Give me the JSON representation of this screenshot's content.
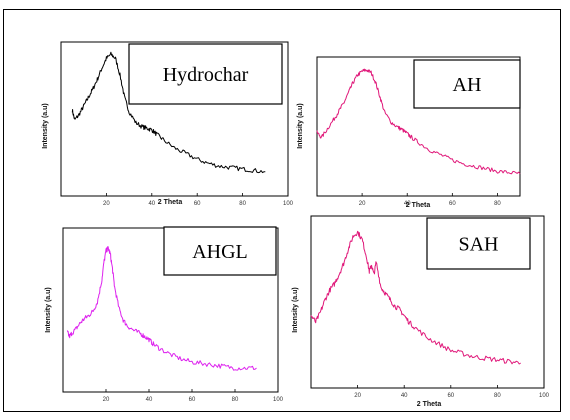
{
  "chart_data": [
    {
      "type": "line",
      "label": "Hydrochar",
      "color": "#000000",
      "xlabel": "2 Theta",
      "ylabel": "Intensity (a.u)",
      "xlim": [
        0,
        100
      ],
      "ylim": [
        0,
        100
      ],
      "xticks": [
        "20",
        "40",
        "60",
        "80",
        "100"
      ],
      "x": [
        5,
        6,
        8,
        10,
        12,
        14,
        16,
        18,
        20,
        22,
        24,
        26,
        28,
        30,
        33,
        36,
        38,
        40,
        42,
        45,
        50,
        55,
        60,
        65,
        70,
        75,
        80,
        85,
        90
      ],
      "y": [
        57,
        50,
        54,
        60,
        66,
        72,
        79,
        87,
        94,
        97,
        94,
        82,
        66,
        56,
        48,
        45,
        44,
        43,
        40,
        36,
        30,
        26,
        22,
        19,
        17,
        16,
        15,
        14,
        13
      ]
    },
    {
      "type": "line",
      "label": "AH",
      "color": "#e0197a",
      "xlabel": "2 Theta",
      "ylabel": "Intensity (a.u)",
      "xlim": [
        0,
        90
      ],
      "ylim": [
        0,
        100
      ],
      "xticks": [
        "20",
        "40",
        "60",
        "80"
      ],
      "x": [
        0,
        2,
        5,
        8,
        10,
        12,
        14,
        16,
        18,
        20,
        22,
        24,
        26,
        28,
        30,
        33,
        36,
        38,
        40,
        42,
        45,
        50,
        55,
        60,
        65,
        70,
        75,
        80,
        85,
        90
      ],
      "y": [
        46,
        42,
        50,
        58,
        64,
        70,
        78,
        86,
        92,
        95,
        96,
        94,
        86,
        74,
        62,
        54,
        50,
        48,
        45,
        42,
        38,
        32,
        28,
        24,
        21,
        19,
        17,
        15,
        14,
        13
      ]
    },
    {
      "type": "line",
      "label": "AHGL",
      "color": "#dd22ee",
      "xlabel": "",
      "ylabel": "Intensity (a.u)",
      "xlim": [
        0,
        100
      ],
      "ylim": [
        0,
        100
      ],
      "xticks": [
        "20",
        "40",
        "60",
        "80",
        "100"
      ],
      "x": [
        2,
        3,
        4,
        6,
        8,
        10,
        12,
        14,
        16,
        18,
        19,
        20,
        21,
        22,
        23,
        24,
        26,
        28,
        30,
        33,
        36,
        38,
        40,
        42,
        45,
        50,
        55,
        60,
        65,
        70,
        75,
        80,
        85,
        90
      ],
      "y": [
        36,
        33,
        35,
        38,
        42,
        45,
        47,
        50,
        56,
        70,
        82,
        90,
        92,
        88,
        78,
        66,
        52,
        44,
        40,
        37,
        35,
        33,
        31,
        28,
        25,
        21,
        18,
        16,
        15,
        14,
        13,
        12,
        12,
        12
      ]
    },
    {
      "type": "line",
      "label": "SAH",
      "color": "#e0197a",
      "xlabel": "2 Theta",
      "ylabel": "Intensity (a.u)",
      "xlim": [
        0,
        100
      ],
      "ylim": [
        0,
        100
      ],
      "xticks": [
        "20",
        "40",
        "60",
        "80",
        "100"
      ],
      "x": [
        0,
        2,
        4,
        6,
        8,
        10,
        12,
        14,
        16,
        18,
        20,
        22,
        24,
        25,
        26,
        27,
        28,
        30,
        32,
        34,
        36,
        38,
        40,
        42,
        45,
        50,
        55,
        60,
        65,
        70,
        75,
        80,
        85,
        90
      ],
      "y": [
        42,
        38,
        44,
        52,
        58,
        62,
        68,
        75,
        84,
        92,
        95,
        90,
        78,
        70,
        74,
        68,
        76,
        60,
        56,
        52,
        48,
        46,
        42,
        38,
        34,
        28,
        24,
        20,
        18,
        16,
        15,
        14,
        13,
        12
      ]
    }
  ]
}
